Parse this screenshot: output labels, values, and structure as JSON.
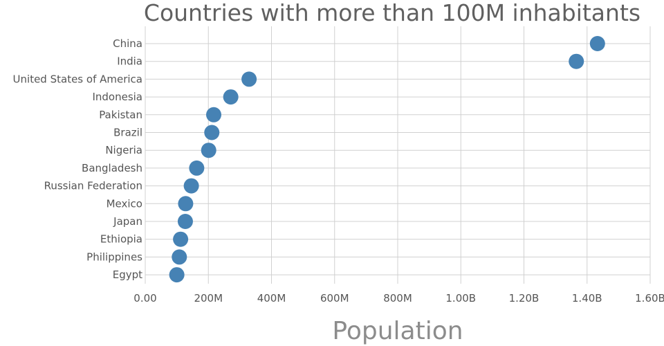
{
  "chart_data": {
    "type": "scatter",
    "title": "Countries with more than 100M inhabitants",
    "xlabel": "Population",
    "ylabel": "",
    "xlim": [
      0,
      1600000000
    ],
    "grid": true,
    "legend": "none",
    "x_ticks": [
      {
        "value": 0,
        "label": "0.00"
      },
      {
        "value": 200000000,
        "label": "200M"
      },
      {
        "value": 400000000,
        "label": "400M"
      },
      {
        "value": 600000000,
        "label": "600M"
      },
      {
        "value": 800000000,
        "label": "800M"
      },
      {
        "value": 1000000000,
        "label": "1.00B"
      },
      {
        "value": 1200000000,
        "label": "1.20B"
      },
      {
        "value": 1400000000,
        "label": "1.40B"
      },
      {
        "value": 1600000000,
        "label": "1.60B"
      }
    ],
    "categories": [
      "China",
      "India",
      "United States of America",
      "Indonesia",
      "Pakistan",
      "Brazil",
      "Nigeria",
      "Bangladesh",
      "Russian Federation",
      "Mexico",
      "Japan",
      "Ethiopia",
      "Philippines",
      "Egypt"
    ],
    "values": [
      1433000000,
      1366000000,
      329000000,
      271000000,
      217000000,
      211000000,
      201000000,
      163000000,
      146000000,
      128000000,
      127000000,
      112000000,
      108000000,
      100000000
    ],
    "marker_color": "#4682b4"
  }
}
